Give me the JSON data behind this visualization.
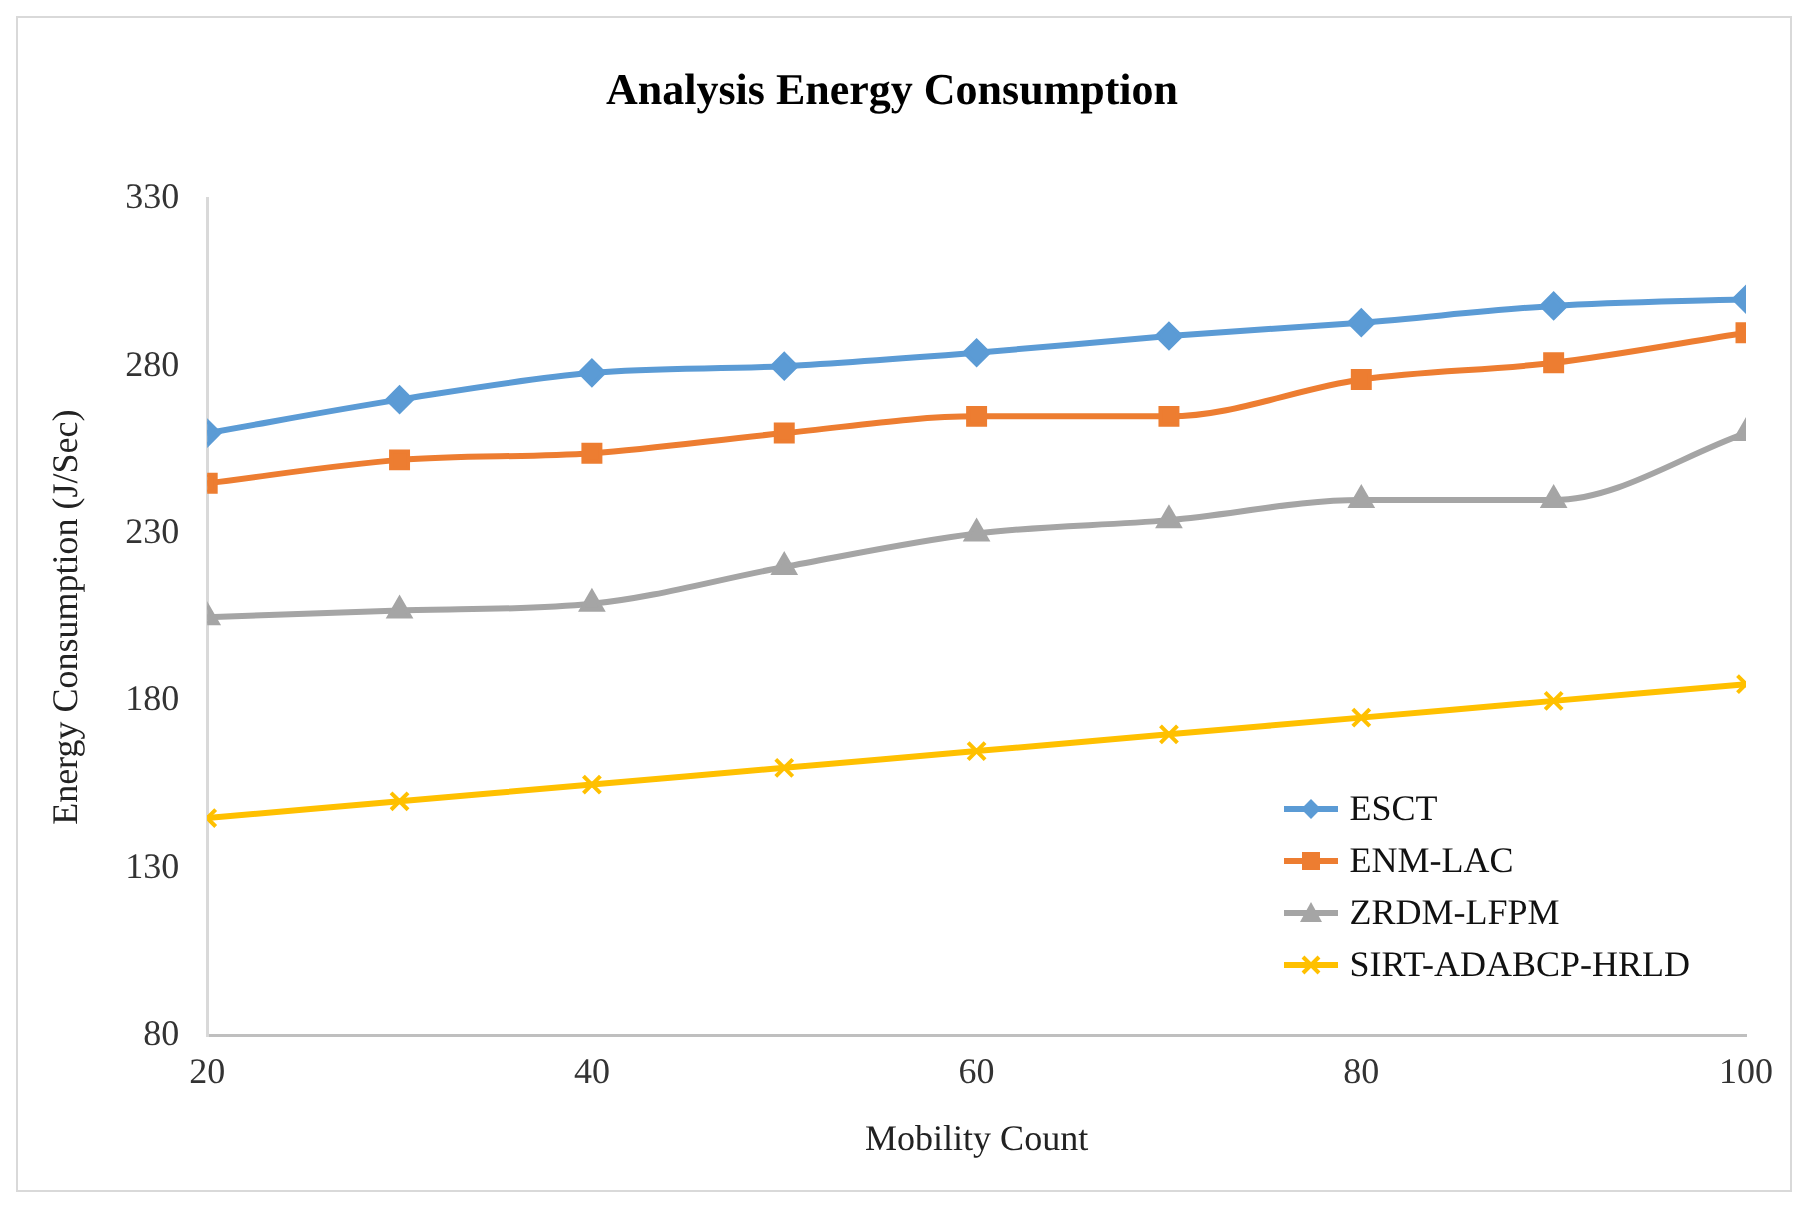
{
  "chart_data": {
    "type": "line",
    "title": "Analysis Energy Consumption",
    "xlabel": "Mobility Count",
    "ylabel": "Energy Consumption (J/Sec)",
    "x": [
      20,
      30,
      40,
      50,
      60,
      70,
      80,
      90,
      100
    ],
    "xlim": [
      20,
      100
    ],
    "xticks": [
      20,
      40,
      60,
      80,
      100
    ],
    "ylim": [
      80,
      330
    ],
    "yticks": [
      80,
      130,
      180,
      230,
      280,
      330
    ],
    "grid": false,
    "legend": "bottom right",
    "line_style": "solid",
    "series": [
      {
        "name": "ESCT",
        "color": "#5b9bd5",
        "marker": "diamond",
        "values": [
          260,
          270,
          278,
          280,
          284,
          289,
          293,
          298,
          300
        ]
      },
      {
        "name": "ENM-LAC",
        "color": "#ed7d31",
        "marker": "square",
        "values": [
          245,
          252,
          254,
          260,
          265,
          265,
          276,
          281,
          290
        ]
      },
      {
        "name": "ZRDM-LFPM",
        "color": "#a5a5a5",
        "marker": "triangle",
        "values": [
          205,
          207,
          209,
          220,
          230,
          234,
          240,
          240,
          260
        ]
      },
      {
        "name": "SIRT-ADABCP-HRLD",
        "color": "#ffc000",
        "marker": "cross",
        "values": [
          145,
          150,
          155,
          160,
          165,
          170,
          175,
          180,
          185
        ]
      }
    ]
  }
}
